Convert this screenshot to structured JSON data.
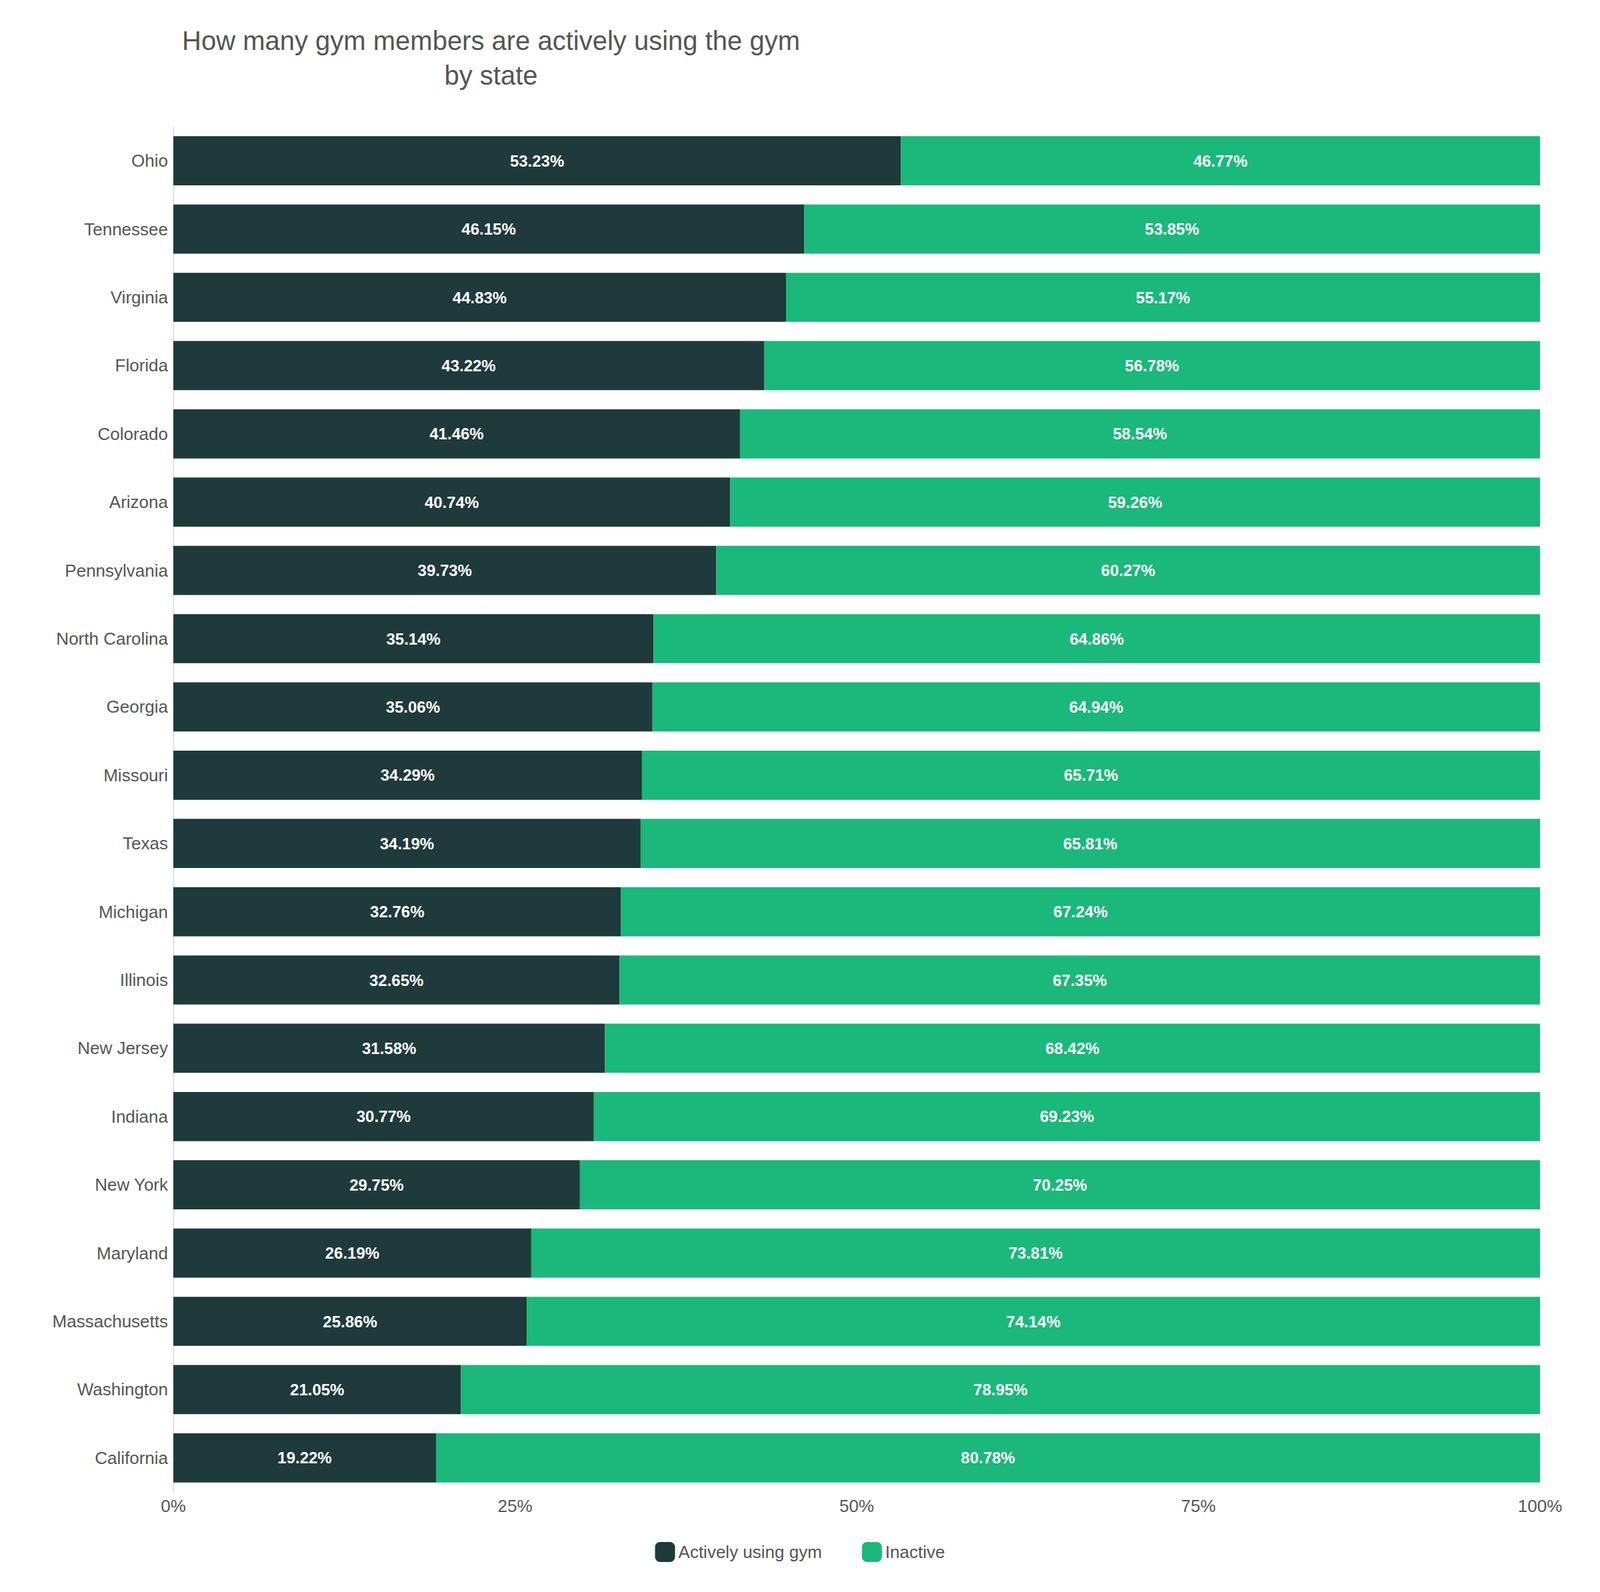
{
  "chart_data": {
    "type": "bar",
    "orientation": "horizontal",
    "stacked": true,
    "title": "How many gym members are actively using the gym\nby state",
    "categories": [
      "Ohio",
      "Tennessee",
      "Virginia",
      "Florida",
      "Colorado",
      "Arizona",
      "Pennsylvania",
      "North Carolina",
      "Georgia",
      "Missouri",
      "Texas",
      "Michigan",
      "Illinois",
      "New Jersey",
      "Indiana",
      "New York",
      "Maryland",
      "Massachusetts",
      "Washington",
      "California"
    ],
    "series": [
      {
        "name": "Actively using gym",
        "color": "#1e3a3a",
        "values": [
          53.23,
          46.15,
          44.83,
          43.22,
          41.46,
          40.74,
          39.73,
          35.14,
          35.06,
          34.29,
          34.19,
          32.76,
          32.65,
          31.58,
          30.77,
          29.75,
          26.19,
          25.86,
          21.05,
          19.22
        ],
        "value_labels": [
          "53.23%",
          "46.15%",
          "44.83%",
          "43.22%",
          "41.46%",
          "40.74%",
          "39.73%",
          "35.14%",
          "35.06%",
          "34.29%",
          "34.19%",
          "32.76%",
          "32.65%",
          "31.58%",
          "30.77%",
          "29.75%",
          "26.19%",
          "25.86%",
          "21.05%",
          "19.22%"
        ]
      },
      {
        "name": "Inactive",
        "color": "#1ab87a",
        "values": [
          46.77,
          53.85,
          55.17,
          56.78,
          58.54,
          59.26,
          60.27,
          64.86,
          64.94,
          65.71,
          65.81,
          67.24,
          67.35,
          68.42,
          69.23,
          70.25,
          73.81,
          74.14,
          78.95,
          80.78
        ],
        "value_labels": [
          "46.77%",
          "53.85%",
          "55.17%",
          "56.78%",
          "58.54%",
          "59.26%",
          "60.27%",
          "64.86%",
          "64.94%",
          "65.71%",
          "65.81%",
          "67.24%",
          "67.35%",
          "68.42%",
          "69.23%",
          "70.25%",
          "73.81%",
          "74.14%",
          "78.95%",
          "80.78%"
        ]
      }
    ],
    "xlim": [
      0,
      100
    ],
    "xticks": [
      {
        "value": 0,
        "label": "0%"
      },
      {
        "value": 25,
        "label": "25%"
      },
      {
        "value": 50,
        "label": "50%"
      },
      {
        "value": 75,
        "label": "75%"
      },
      {
        "value": 100,
        "label": "100%"
      }
    ],
    "data_labels": true,
    "grid": false,
    "legend": "bottom"
  }
}
